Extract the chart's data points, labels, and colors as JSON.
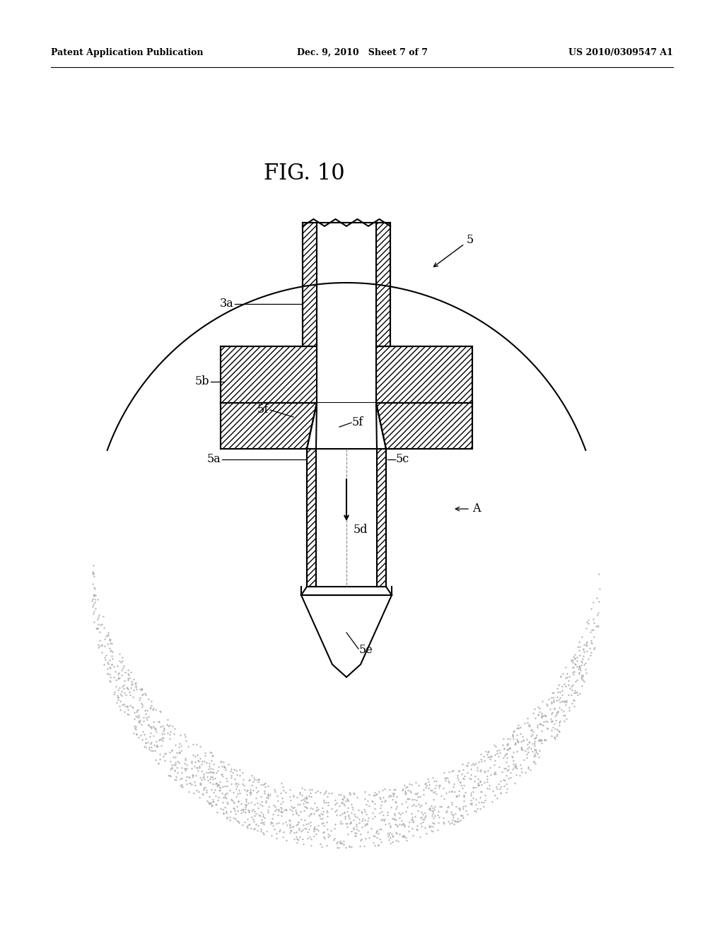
{
  "bg_color": "#ffffff",
  "line_color": "#000000",
  "title": "FIG. 10",
  "header_left": "Patent Application Publication",
  "header_mid": "Dec. 9, 2010   Sheet 7 of 7",
  "header_right": "US 2010/0309547 A1"
}
